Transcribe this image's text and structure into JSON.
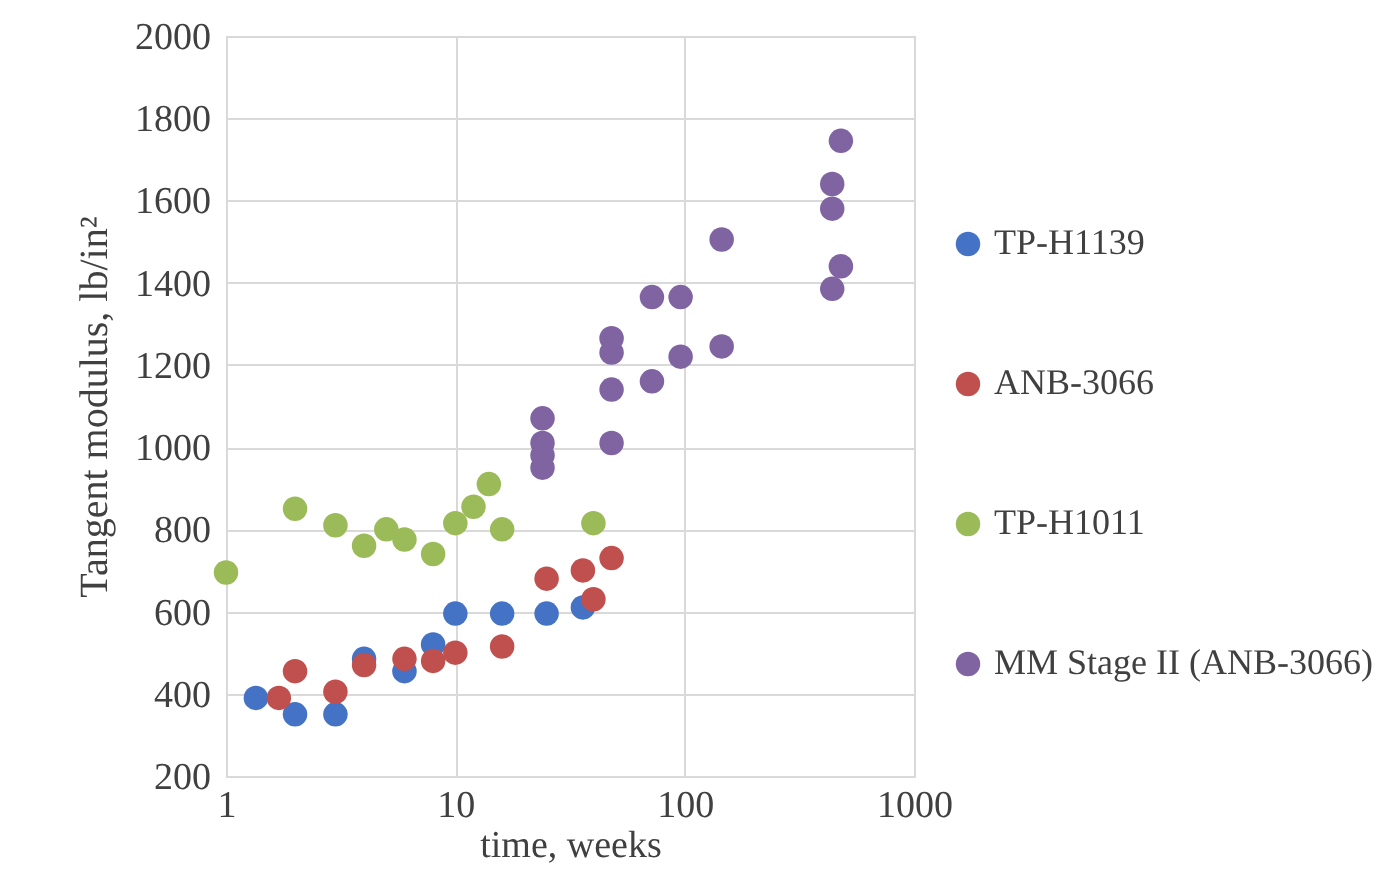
{
  "chart_data": {
    "type": "scatter",
    "xlabel": "time, weeks",
    "ylabel": "Tangent modulus, lb/in²",
    "log": "x",
    "xlim": [
      1,
      1000
    ],
    "xticks": [
      1,
      10,
      100,
      1000
    ],
    "ylim": [
      200,
      2000
    ],
    "yticks": [
      200,
      400,
      600,
      800,
      1000,
      1200,
      1400,
      1600,
      1800,
      2000
    ],
    "grid": true,
    "legend": "right",
    "marker": "circle",
    "series": [
      {
        "name": "TP-H1139",
        "color": "#4472c4",
        "x": [
          1.35,
          2,
          3,
          4,
          6,
          8,
          10,
          16,
          25,
          36
        ],
        "values": [
          390,
          350,
          350,
          485,
          455,
          520,
          595,
          595,
          595,
          610
        ]
      },
      {
        "name": "ANB-3066",
        "color": "#c0504d",
        "x": [
          1.7,
          2,
          3,
          4,
          6,
          8,
          10,
          16,
          25,
          36,
          40,
          48
        ],
        "values": [
          390,
          455,
          405,
          470,
          485,
          480,
          500,
          515,
          680,
          700,
          630,
          730
        ]
      },
      {
        "name": "TP-H1011",
        "color": "#9bbb59",
        "x": [
          1,
          2,
          3,
          4,
          5,
          6,
          8,
          10,
          12,
          14,
          16,
          40
        ],
        "values": [
          695,
          850,
          810,
          760,
          800,
          775,
          740,
          815,
          855,
          910,
          800,
          815
        ]
      },
      {
        "name": "MM Stage II (ANB-3066)",
        "color": "#8064a2",
        "x": [
          24,
          24,
          24,
          24,
          48,
          48,
          48,
          48,
          72,
          72,
          96,
          96,
          145,
          145,
          440,
          440,
          440,
          480,
          480
        ],
        "values": [
          1070,
          1010,
          980,
          950,
          1265,
          1230,
          1140,
          1010,
          1365,
          1160,
          1365,
          1220,
          1505,
          1245,
          1640,
          1580,
          1385,
          1745,
          1440
        ]
      }
    ]
  }
}
